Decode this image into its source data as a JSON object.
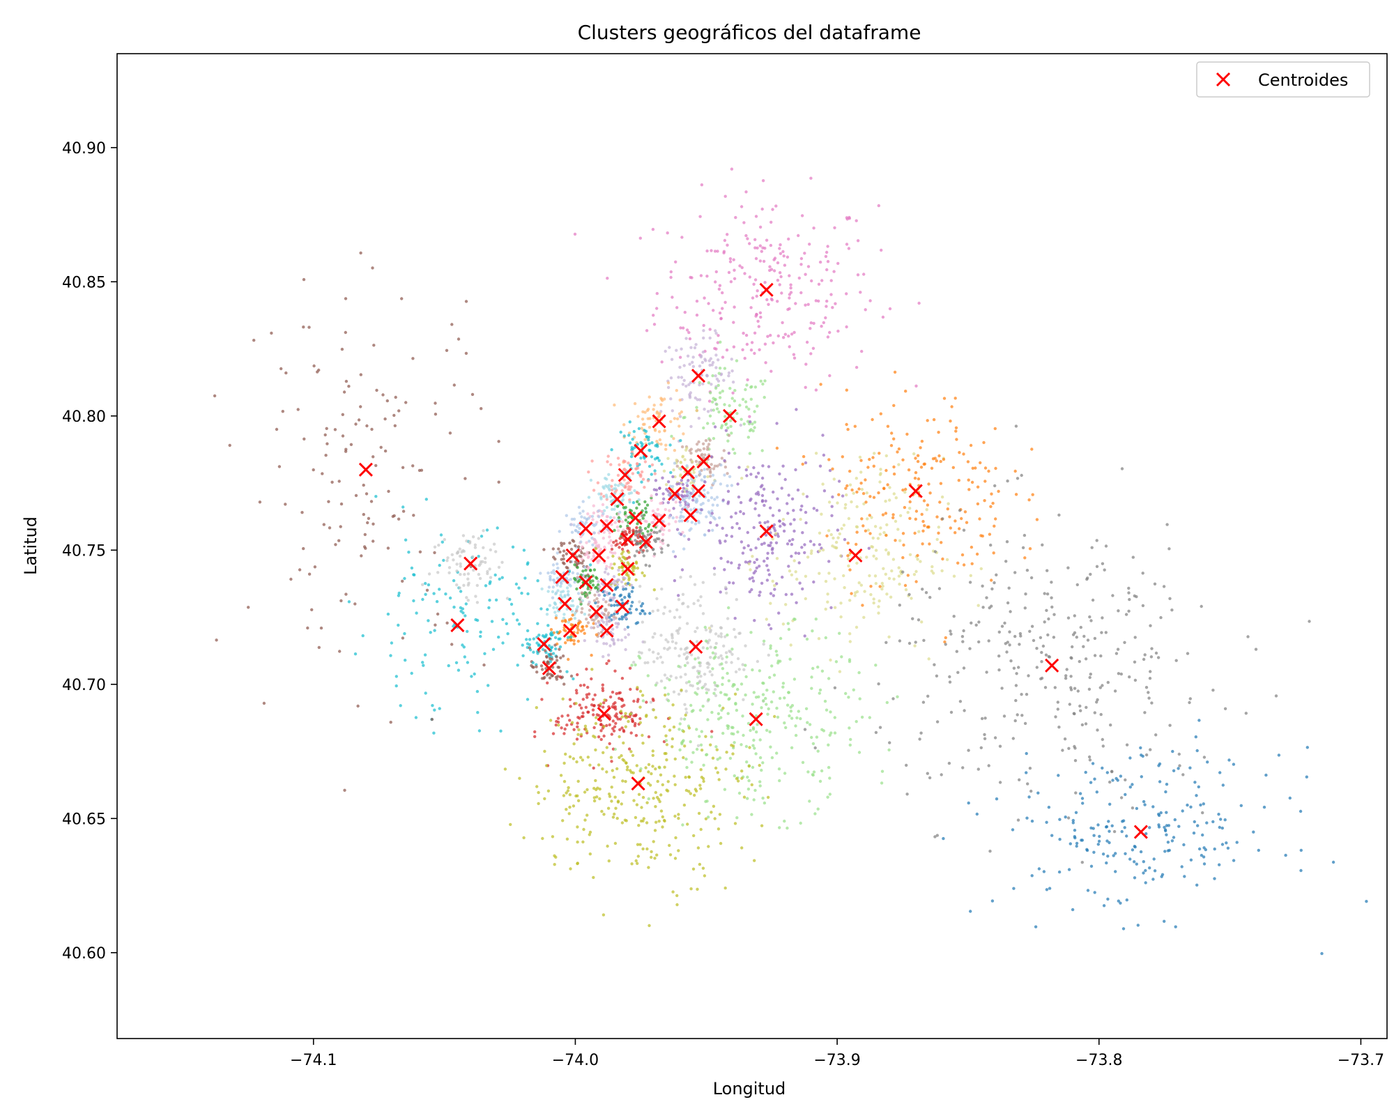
{
  "chart_data": {
    "type": "scatter",
    "title": "Clusters geográficos del dataframe",
    "xlabel": "Longitud",
    "ylabel": "Latitud",
    "xlim": [
      -74.175,
      -73.69
    ],
    "ylim": [
      40.568,
      40.935
    ],
    "xticks": [
      {
        "value": -74.1,
        "label": "−74.1"
      },
      {
        "value": -74.0,
        "label": "−74.0"
      },
      {
        "value": -73.9,
        "label": "−73.9"
      },
      {
        "value": -73.8,
        "label": "−73.8"
      },
      {
        "value": -73.7,
        "label": "−73.7"
      }
    ],
    "yticks": [
      {
        "value": 40.6,
        "label": "40.60"
      },
      {
        "value": 40.65,
        "label": "40.65"
      },
      {
        "value": 40.7,
        "label": "40.70"
      },
      {
        "value": 40.75,
        "label": "40.75"
      },
      {
        "value": 40.8,
        "label": "40.80"
      },
      {
        "value": 40.85,
        "label": "40.85"
      },
      {
        "value": 40.9,
        "label": "40.90"
      }
    ],
    "grid": false,
    "legend": {
      "position": "top-right",
      "entries": [
        {
          "label": "Centroides",
          "marker": "x",
          "color": "#ff0000"
        }
      ]
    },
    "clusters": [
      {
        "color": "#e377c2",
        "centroid": [
          -73.927,
          40.847
        ],
        "spread": [
          0.035,
          0.03
        ],
        "n": 260
      },
      {
        "color": "#c5b0d5",
        "centroid": [
          -73.953,
          40.815
        ],
        "spread": [
          0.012,
          0.012
        ],
        "n": 90
      },
      {
        "color": "#98df8a",
        "centroid": [
          -73.941,
          40.8
        ],
        "spread": [
          0.014,
          0.014
        ],
        "n": 90
      },
      {
        "color": "#ffbb78",
        "centroid": [
          -73.968,
          40.798
        ],
        "spread": [
          0.01,
          0.01
        ],
        "n": 70
      },
      {
        "color": "#17becf",
        "centroid": [
          -73.975,
          40.787
        ],
        "spread": [
          0.008,
          0.008
        ],
        "n": 60
      },
      {
        "color": "#c49c94",
        "centroid": [
          -73.951,
          40.783
        ],
        "spread": [
          0.008,
          0.008
        ],
        "n": 60
      },
      {
        "color": "#dbdb8d",
        "centroid": [
          -73.957,
          40.779
        ],
        "spread": [
          0.008,
          0.008
        ],
        "n": 50
      },
      {
        "color": "#ff9896",
        "centroid": [
          -73.981,
          40.778
        ],
        "spread": [
          0.008,
          0.008
        ],
        "n": 60
      },
      {
        "color": "#aec7e8",
        "centroid": [
          -73.953,
          40.772
        ],
        "spread": [
          0.009,
          0.009
        ],
        "n": 60
      },
      {
        "color": "#9467bd",
        "centroid": [
          -73.962,
          40.771
        ],
        "spread": [
          0.006,
          0.006
        ],
        "n": 50
      },
      {
        "color": "#9edae5",
        "centroid": [
          -73.984,
          40.769
        ],
        "spread": [
          0.008,
          0.008
        ],
        "n": 60
      },
      {
        "color": "#2ca02c",
        "centroid": [
          -73.977,
          40.762
        ],
        "spread": [
          0.006,
          0.006
        ],
        "n": 50
      },
      {
        "color": "#f7b6d2",
        "centroid": [
          -73.968,
          40.761
        ],
        "spread": [
          0.007,
          0.007
        ],
        "n": 50
      },
      {
        "color": "#aec7e8",
        "centroid": [
          -73.956,
          40.763
        ],
        "spread": [
          0.008,
          0.008
        ],
        "n": 50
      },
      {
        "color": "#f7b6d2",
        "centroid": [
          -73.988,
          40.759
        ],
        "spread": [
          0.006,
          0.006
        ],
        "n": 50
      },
      {
        "color": "#aec7e8",
        "centroid": [
          -73.996,
          40.758
        ],
        "spread": [
          0.007,
          0.007
        ],
        "n": 50
      },
      {
        "color": "#d62728",
        "centroid": [
          -73.98,
          40.754
        ],
        "spread": [
          0.005,
          0.005
        ],
        "n": 50
      },
      {
        "color": "#7f7f7f",
        "centroid": [
          -73.973,
          40.753
        ],
        "spread": [
          0.006,
          0.006
        ],
        "n": 50
      },
      {
        "color": "#9467bd",
        "centroid": [
          -73.927,
          40.757
        ],
        "spread": [
          0.022,
          0.026
        ],
        "n": 220
      },
      {
        "color": "#dbdb8d",
        "centroid": [
          -73.893,
          40.748
        ],
        "spread": [
          0.028,
          0.03
        ],
        "n": 200
      },
      {
        "color": "#8c564b",
        "centroid": [
          -74.001,
          40.748
        ],
        "spread": [
          0.007,
          0.007
        ],
        "n": 50
      },
      {
        "color": "#f7b6d2",
        "centroid": [
          -73.991,
          40.748
        ],
        "spread": [
          0.006,
          0.006
        ],
        "n": 50
      },
      {
        "color": "#bcbd22",
        "centroid": [
          -73.98,
          40.743
        ],
        "spread": [
          0.006,
          0.006
        ],
        "n": 50
      },
      {
        "color": "#aec7e8",
        "centroid": [
          -74.005,
          40.74
        ],
        "spread": [
          0.006,
          0.006
        ],
        "n": 50
      },
      {
        "color": "#2ca02c",
        "centroid": [
          -73.996,
          40.738
        ],
        "spread": [
          0.005,
          0.005
        ],
        "n": 50
      },
      {
        "color": "#c5b0d5",
        "centroid": [
          -73.988,
          40.737
        ],
        "spread": [
          0.006,
          0.006
        ],
        "n": 50
      },
      {
        "color": "#9edae5",
        "centroid": [
          -74.004,
          40.73
        ],
        "spread": [
          0.006,
          0.006
        ],
        "n": 50
      },
      {
        "color": "#1f77b4",
        "centroid": [
          -73.982,
          40.729
        ],
        "spread": [
          0.007,
          0.007
        ],
        "n": 60
      },
      {
        "color": "#c49c94",
        "centroid": [
          -73.992,
          40.727
        ],
        "spread": [
          0.006,
          0.006
        ],
        "n": 50
      },
      {
        "color": "#ff7f0e",
        "centroid": [
          -74.002,
          40.72
        ],
        "spread": [
          0.006,
          0.006
        ],
        "n": 50
      },
      {
        "color": "#c5b0d5",
        "centroid": [
          -73.988,
          40.72
        ],
        "spread": [
          0.007,
          0.007
        ],
        "n": 50
      },
      {
        "color": "#17becf",
        "centroid": [
          -74.012,
          40.715
        ],
        "spread": [
          0.006,
          0.006
        ],
        "n": 50
      },
      {
        "color": "#8c564b",
        "centroid": [
          -74.01,
          40.706
        ],
        "spread": [
          0.006,
          0.006
        ],
        "n": 50
      },
      {
        "color": "#c7c7c7",
        "centroid": [
          -73.954,
          40.714
        ],
        "spread": [
          0.018,
          0.02
        ],
        "n": 180
      },
      {
        "color": "#ff7f0e",
        "centroid": [
          -73.87,
          40.772
        ],
        "spread": [
          0.03,
          0.03
        ],
        "n": 200
      },
      {
        "color": "#7f7f7f",
        "centroid": [
          -73.818,
          40.707
        ],
        "spread": [
          0.055,
          0.045
        ],
        "n": 320
      },
      {
        "color": "#1f77b4",
        "centroid": [
          -73.784,
          40.645
        ],
        "spread": [
          0.045,
          0.025
        ],
        "n": 220
      },
      {
        "color": "#d62728",
        "centroid": [
          -73.989,
          40.689
        ],
        "spread": [
          0.016,
          0.012
        ],
        "n": 160
      },
      {
        "color": "#98df8a",
        "centroid": [
          -73.931,
          40.687
        ],
        "spread": [
          0.035,
          0.028
        ],
        "n": 300
      },
      {
        "color": "#bcbd22",
        "centroid": [
          -73.976,
          40.663
        ],
        "spread": [
          0.035,
          0.03
        ],
        "n": 320
      },
      {
        "color": "#17becf",
        "centroid": [
          -74.045,
          40.722
        ],
        "spread": [
          0.035,
          0.028
        ],
        "n": 140
      },
      {
        "color": "#8c564b",
        "centroid": [
          -74.08,
          40.78
        ],
        "spread": [
          0.04,
          0.06
        ],
        "n": 140
      },
      {
        "color": "#c7c7c7",
        "centroid": [
          -74.04,
          40.745
        ],
        "spread": [
          0.012,
          0.012
        ],
        "n": 70
      }
    ]
  }
}
